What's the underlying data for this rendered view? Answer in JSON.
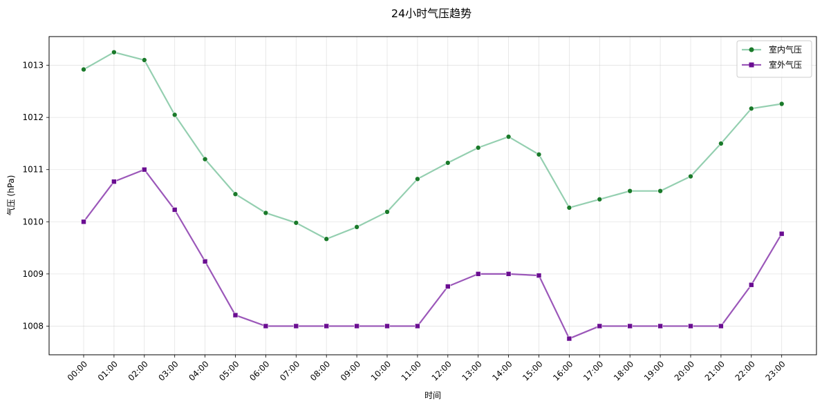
{
  "chart_data": {
    "type": "line",
    "title": "24小时气压趋势",
    "xlabel": "时间",
    "ylabel": "气压 (hPa)",
    "categories": [
      "00:00",
      "01:00",
      "02:00",
      "03:00",
      "04:00",
      "05:00",
      "06:00",
      "07:00",
      "08:00",
      "09:00",
      "10:00",
      "11:00",
      "12:00",
      "13:00",
      "14:00",
      "15:00",
      "16:00",
      "17:00",
      "18:00",
      "19:00",
      "20:00",
      "21:00",
      "22:00",
      "23:00"
    ],
    "ylim": [
      1007.45,
      1013.55
    ],
    "yticks": [
      1008,
      1009,
      1010,
      1011,
      1012,
      1013
    ],
    "grid": true,
    "legend_position": "top-right",
    "series": [
      {
        "name": "室内气压",
        "color": "#66bb8f",
        "marker_color": "#1a7a2a",
        "marker": "circle",
        "values": [
          1012.92,
          1013.25,
          1013.1,
          1012.05,
          1011.2,
          1010.53,
          1010.17,
          1009.98,
          1009.67,
          1009.9,
          1010.19,
          1010.82,
          1011.13,
          1011.42,
          1011.63,
          1011.29,
          1010.27,
          1010.43,
          1010.59,
          1010.59,
          1010.87,
          1011.5,
          1012.17,
          1012.26
        ]
      },
      {
        "name": "室外气压",
        "color": "#7a1fa2",
        "marker_color": "#6a0d91",
        "marker": "square",
        "values": [
          1010.0,
          1010.77,
          1011.0,
          1010.23,
          1009.24,
          1008.21,
          1008.0,
          1008.0,
          1008.0,
          1008.0,
          1008.0,
          1008.0,
          1008.76,
          1009.0,
          1009.0,
          1008.97,
          1007.76,
          1008.0,
          1008.0,
          1008.0,
          1008.0,
          1008.0,
          1008.79,
          1009.77
        ]
      }
    ]
  }
}
